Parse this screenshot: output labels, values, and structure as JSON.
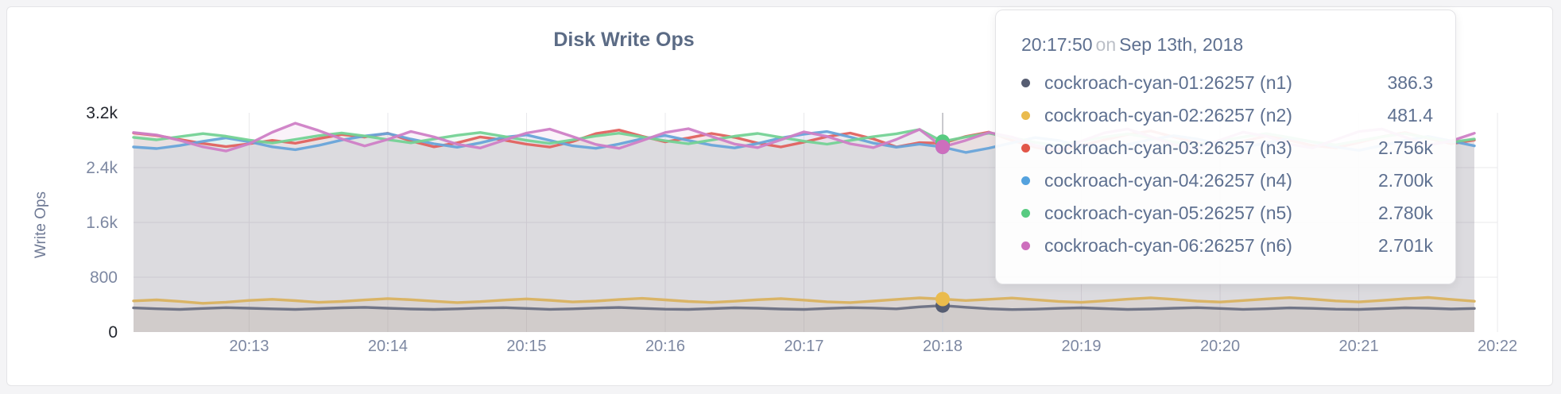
{
  "page": {
    "background": "#f4f4f6",
    "card_background": "#ffffff"
  },
  "tooltip": {
    "time": "20:17:50",
    "preposition": "on",
    "date": "Sep 13th, 2018",
    "rows": [
      {
        "name": "cockroach-cyan-01:26257 (n1)",
        "value": "386.3",
        "color": "#565d72"
      },
      {
        "name": "cockroach-cyan-02:26257 (n2)",
        "value": "481.4",
        "color": "#eabb4d"
      },
      {
        "name": "cockroach-cyan-03:26257 (n3)",
        "value": "2.756k",
        "color": "#e25649"
      },
      {
        "name": "cockroach-cyan-04:26257 (n4)",
        "value": "2.700k",
        "color": "#54a2de"
      },
      {
        "name": "cockroach-cyan-05:26257 (n5)",
        "value": "2.780k",
        "color": "#58cb81"
      },
      {
        "name": "cockroach-cyan-06:26257 (n6)",
        "value": "2.701k",
        "color": "#cd6ebd"
      }
    ]
  },
  "chart_data": {
    "type": "line",
    "title": "Disk Write Ops",
    "ylabel": "Write Ops",
    "ylim": [
      0,
      3200
    ],
    "grid": true,
    "fill_opacity": 0.09,
    "x_start": "20:12:10",
    "x_end": "20:21:50",
    "x_interval_seconds": 10,
    "x_ticks": [
      "20:13",
      "20:14",
      "20:15",
      "20:16",
      "20:17",
      "20:18",
      "20:19",
      "20:20",
      "20:21",
      "20:22"
    ],
    "y_ticks": [
      {
        "label": "0",
        "value": 0,
        "emphasis": true
      },
      {
        "label": "800",
        "value": 800,
        "emphasis": false
      },
      {
        "label": "1.6k",
        "value": 1600,
        "emphasis": false
      },
      {
        "label": "2.4k",
        "value": 2400,
        "emphasis": false
      },
      {
        "label": "3.2k",
        "value": 3200,
        "emphasis": true
      }
    ],
    "hover_index": 35,
    "hover_time": "20:17:50",
    "series": [
      {
        "name": "cockroach-cyan-01:26257 (n1)",
        "short": "n1",
        "color": "#565d72",
        "line_color": "#6b7083",
        "values": [
          352,
          340,
          331,
          344,
          356,
          348,
          338,
          330,
          342,
          354,
          360,
          348,
          336,
          330,
          338,
          350,
          356,
          344,
          332,
          338,
          350,
          358,
          346,
          334,
          330,
          342,
          354,
          348,
          336,
          331,
          344,
          356,
          350,
          338,
          368,
          386.3,
          362,
          340,
          328,
          334,
          346,
          354,
          342,
          330,
          336,
          348,
          356,
          344,
          332,
          340,
          352,
          346,
          334,
          330,
          342,
          354,
          348,
          336,
          344
        ]
      },
      {
        "name": "cockroach-cyan-02:26257 (n2)",
        "short": "n2",
        "color": "#eabb4d",
        "line_color": "#d9b25f",
        "values": [
          455,
          470,
          448,
          420,
          436,
          462,
          478,
          458,
          434,
          446,
          468,
          488,
          472,
          450,
          430,
          444,
          466,
          484,
          464,
          440,
          452,
          474,
          492,
          470,
          446,
          432,
          450,
          472,
          488,
          466,
          442,
          430,
          452,
          476,
          498,
          481.4,
          460,
          478,
          496,
          472,
          448,
          434,
          456,
          480,
          500,
          478,
          452,
          438,
          460,
          484,
          502,
          480,
          454,
          440,
          462,
          486,
          504,
          476,
          450
        ]
      },
      {
        "name": "cockroach-cyan-03:26257 (n3)",
        "short": "n3",
        "color": "#e25649",
        "line_color": "#e0625f",
        "values": [
          2905,
          2868,
          2812,
          2752,
          2706,
          2748,
          2798,
          2756,
          2822,
          2884,
          2846,
          2902,
          2788,
          2704,
          2762,
          2848,
          2804,
          2742,
          2700,
          2782,
          2896,
          2948,
          2858,
          2776,
          2832,
          2898,
          2842,
          2758,
          2702,
          2772,
          2852,
          2904,
          2818,
          2702,
          2764,
          2756,
          2854,
          2918,
          2796,
          2698,
          2642,
          2724,
          2806,
          2882,
          2936,
          2848,
          2762,
          2704,
          2784,
          2862,
          2798,
          2722,
          2688,
          2768,
          2852,
          2912,
          2828,
          2748,
          2802
        ]
      },
      {
        "name": "cockroach-cyan-04:26257 (n4)",
        "short": "n4",
        "color": "#54a2de",
        "line_color": "#68a4d9",
        "values": [
          2702,
          2678,
          2722,
          2784,
          2834,
          2778,
          2704,
          2662,
          2724,
          2802,
          2862,
          2898,
          2816,
          2748,
          2698,
          2762,
          2842,
          2878,
          2798,
          2718,
          2682,
          2744,
          2822,
          2868,
          2796,
          2728,
          2688,
          2752,
          2832,
          2888,
          2926,
          2846,
          2758,
          2698,
          2742,
          2700,
          2622,
          2684,
          2762,
          2838,
          2796,
          2718,
          2672,
          2734,
          2812,
          2866,
          2818,
          2742,
          2698,
          2758,
          2828,
          2776,
          2702,
          2652,
          2722,
          2798,
          2856,
          2788,
          2718
        ]
      },
      {
        "name": "cockroach-cyan-05:26257 (n5)",
        "short": "n5",
        "color": "#58cb81",
        "line_color": "#74d295",
        "values": [
          2842,
          2806,
          2852,
          2896,
          2858,
          2802,
          2758,
          2812,
          2866,
          2906,
          2862,
          2808,
          2762,
          2818,
          2872,
          2912,
          2856,
          2798,
          2752,
          2806,
          2862,
          2902,
          2848,
          2792,
          2748,
          2802,
          2858,
          2898,
          2842,
          2786,
          2742,
          2796,
          2852,
          2894,
          2956,
          2780,
          2848,
          2902,
          2838,
          2768,
          2722,
          2786,
          2846,
          2892,
          2836,
          2772,
          2728,
          2788,
          2848,
          2896,
          2840,
          2776,
          2732,
          2792,
          2850,
          2898,
          2834,
          2772,
          2816
        ]
      },
      {
        "name": "cockroach-cyan-06:26257 (n6)",
        "short": "n6",
        "color": "#cd6ebd",
        "line_color": "#cf80c6",
        "values": [
          2912,
          2876,
          2798,
          2704,
          2642,
          2748,
          2916,
          3048,
          2942,
          2818,
          2716,
          2812,
          2928,
          2848,
          2742,
          2686,
          2798,
          2904,
          2962,
          2852,
          2738,
          2682,
          2794,
          2912,
          2968,
          2856,
          2744,
          2692,
          2806,
          2922,
          2856,
          2748,
          2692,
          2812,
          2958,
          2701,
          2798,
          2912,
          2846,
          2722,
          2668,
          2786,
          2908,
          2964,
          2852,
          2736,
          2682,
          2802,
          2918,
          2858,
          2742,
          2688,
          2808,
          2926,
          2962,
          2844,
          2728,
          2788,
          2902
        ]
      }
    ]
  }
}
